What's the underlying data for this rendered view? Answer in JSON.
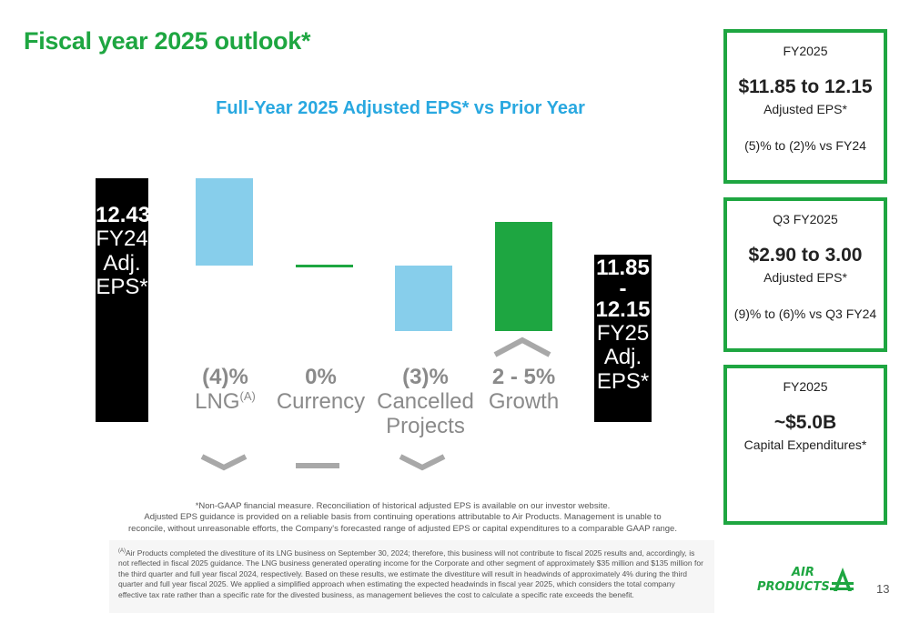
{
  "header": {
    "title": "Fiscal year 2025 outlook*",
    "chart_title": "Full-Year 2025 Adjusted EPS* vs Prior Year"
  },
  "chart_data": {
    "type": "bar",
    "subtype": "waterfall",
    "title": "Full-Year 2025 Adjusted EPS* vs Prior Year",
    "colors": {
      "decrease": "#87ceeb",
      "neutral": "#1ea641",
      "growth": "#1ea641",
      "total": "#000000",
      "chevron": "#a8a8a8"
    },
    "start": {
      "value": 12.43,
      "lines": [
        "12.43",
        "FY24",
        "Adj.",
        "EPS*"
      ]
    },
    "steps": [
      {
        "pct": "(4)%",
        "label": "LNG",
        "sup": "(A)",
        "change_pct": [
          -4,
          -4
        ],
        "color": "decrease",
        "direction": "down"
      },
      {
        "pct": "0%",
        "label": "Currency",
        "change_pct": [
          0,
          0
        ],
        "color": "neutral",
        "direction": "flat"
      },
      {
        "pct": "(3)%",
        "label_lines": [
          "Cancelled",
          "Projects"
        ],
        "change_pct": [
          -3,
          -3
        ],
        "color": "decrease",
        "direction": "down"
      },
      {
        "pct": "2 - 5%",
        "label": "Growth",
        "change_pct": [
          2,
          5
        ],
        "color": "growth",
        "direction": "up"
      }
    ],
    "end": {
      "value_range": [
        11.85,
        12.15
      ],
      "lines": [
        "11.85",
        "-",
        "12.15",
        "FY25",
        "Adj.",
        "EPS*"
      ]
    }
  },
  "cards": [
    {
      "heading": "FY2025",
      "value": "$11.85 to 12.15",
      "subtitle": "Adjusted EPS*",
      "note": "(5)% to (2)% vs FY24"
    },
    {
      "heading": "Q3 FY2025",
      "value": "$2.90 to 3.00",
      "subtitle": "Adjusted EPS*",
      "note": "(9)% to (6)% vs Q3 FY24"
    },
    {
      "heading": "FY2025",
      "value": "~$5.0B",
      "subtitle": "Capital Expenditures*"
    }
  ],
  "footnote": {
    "line1": "*Non-GAAP financial measure. Reconciliation of historical adjusted EPS is available on our investor website.",
    "line2": "Adjusted EPS guidance is provided on a reliable basis from continuing operations attributable to Air Products. Management is unable to",
    "line3": "reconcile, without unreasonable efforts, the Company's forecasted range of adjusted EPS or capital expenditures to a comparable GAAP range."
  },
  "fine_print": {
    "marker": "(A)",
    "text": "Air Products completed the divestiture of its LNG business on September 30, 2024; therefore, this business will not contribute to fiscal 2025 results and, accordingly, is not reflected in fiscal 2025 guidance. The LNG business generated operating income for the Corporate and other segment of approximately $35 million and $135 million for the third quarter and full year fiscal 2024, respectively. Based on these results, we estimate the divestiture will result in headwinds of approximately 4% during the third quarter and full year fiscal 2025. We applied a simplified approach when estimating the expected headwinds in fiscal year 2025, which considers the total company effective tax rate rather than a specific rate for the divested business, as management believes the cost to calculate a specific rate exceeds the benefit."
  },
  "logo": {
    "line1": "AIR",
    "line2": "PRODUCTS"
  },
  "page_number": "13"
}
